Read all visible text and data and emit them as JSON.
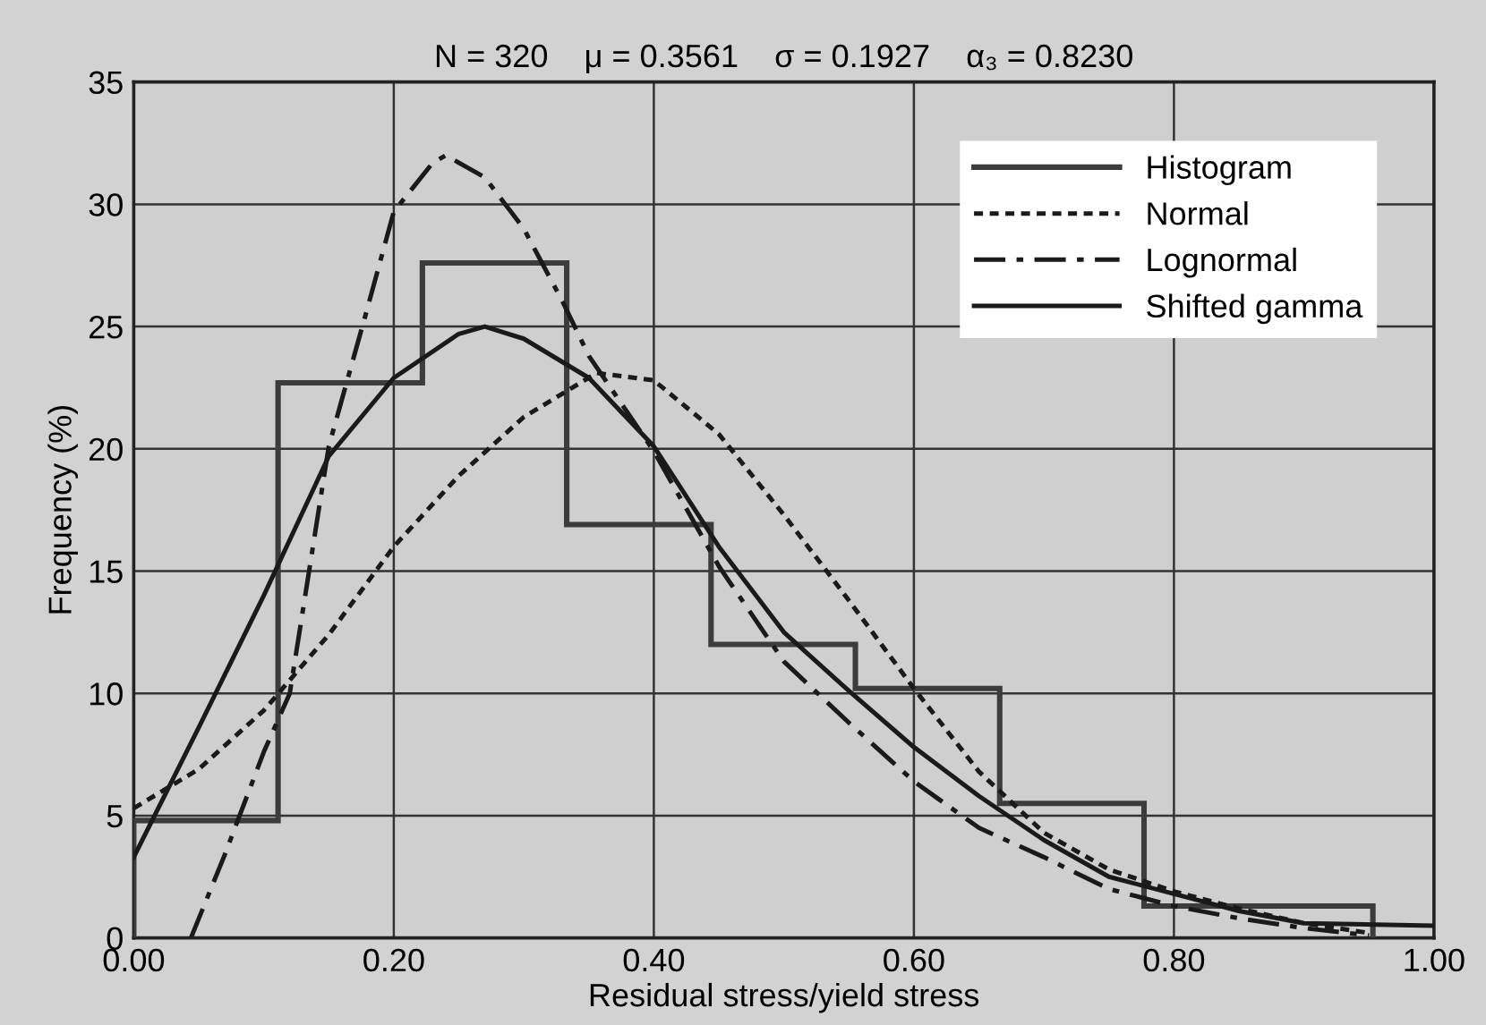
{
  "chart_data": {
    "type": "histogram",
    "title": "N = 320    μ = 0.3561    σ = 0.1927    α₃ = 0.8230",
    "xlabel": "Residual stress/yield stress",
    "ylabel": "Frequency (%)",
    "xlim": [
      0,
      1
    ],
    "ylim": [
      0,
      35
    ],
    "xticks": [
      {
        "value": 0,
        "label": "0.00"
      },
      {
        "value": 0.2,
        "label": "0.20"
      },
      {
        "value": 0.4,
        "label": "0.40"
      },
      {
        "value": 0.6,
        "label": "0.60"
      },
      {
        "value": 0.8,
        "label": "0.80"
      },
      {
        "value": 1,
        "label": "1.00"
      }
    ],
    "yticks": [
      0,
      5,
      10,
      15,
      20,
      25,
      30,
      35
    ],
    "grid": true,
    "legend": "top right",
    "series": [
      {
        "name": "Histogram",
        "color": "#3c3c3c",
        "line_style": "solid",
        "bins": [
          0,
          0.111,
          0.222,
          0.333,
          0.444,
          0.555,
          0.666,
          0.777,
          0.953
        ],
        "values": [
          4.8,
          22.7,
          27.6,
          16.9,
          12.0,
          10.2,
          5.5,
          1.3
        ]
      },
      {
        "name": "Normal",
        "type": "line",
        "color": "#1a1a1a",
        "line_style": "dotted",
        "x": [
          0,
          0.05,
          0.1,
          0.15,
          0.2,
          0.25,
          0.3,
          0.356,
          0.4,
          0.45,
          0.5,
          0.55,
          0.6,
          0.65,
          0.7,
          0.75,
          0.8,
          0.85,
          0.9,
          0.95
        ],
        "values": [
          5.3,
          6.9,
          9.3,
          12.4,
          16.0,
          18.9,
          21.3,
          23.1,
          22.8,
          20.6,
          17.3,
          13.8,
          10.2,
          6.8,
          4.3,
          2.8,
          1.9,
          1.2,
          0.6,
          0.2
        ]
      },
      {
        "name": "Lognormal",
        "type": "line",
        "color": "#1a1a1a",
        "line_style": "dashdot",
        "x": [
          0.044,
          0.07,
          0.1,
          0.12,
          0.15,
          0.18,
          0.2,
          0.23,
          0.24,
          0.27,
          0.3,
          0.33,
          0.35,
          0.4,
          0.45,
          0.5,
          0.55,
          0.6,
          0.65,
          0.7,
          0.75,
          0.8,
          0.85,
          0.9,
          0.95
        ],
        "values": [
          0,
          3.4,
          7.6,
          10.0,
          20.1,
          25.8,
          29.7,
          31.7,
          32.0,
          31.1,
          29.0,
          26.0,
          23.8,
          19.9,
          15.2,
          11.3,
          8.8,
          6.4,
          4.5,
          3.3,
          2.0,
          1.3,
          0.8,
          0.4,
          0.1
        ]
      },
      {
        "name": "Shifted gamma",
        "type": "line",
        "color": "#1a1a1a",
        "line_style": "solid",
        "x": [
          0,
          0.05,
          0.1,
          0.15,
          0.2,
          0.25,
          0.27,
          0.3,
          0.35,
          0.4,
          0.45,
          0.5,
          0.55,
          0.6,
          0.65,
          0.7,
          0.75,
          0.8,
          0.85,
          0.9,
          1.0
        ],
        "values": [
          3.3,
          8.6,
          14.0,
          19.7,
          22.9,
          24.7,
          25.0,
          24.5,
          22.9,
          20.1,
          16.0,
          12.5,
          10.1,
          7.8,
          5.8,
          4.0,
          2.5,
          1.8,
          1.1,
          0.6,
          0.5
        ]
      }
    ]
  }
}
